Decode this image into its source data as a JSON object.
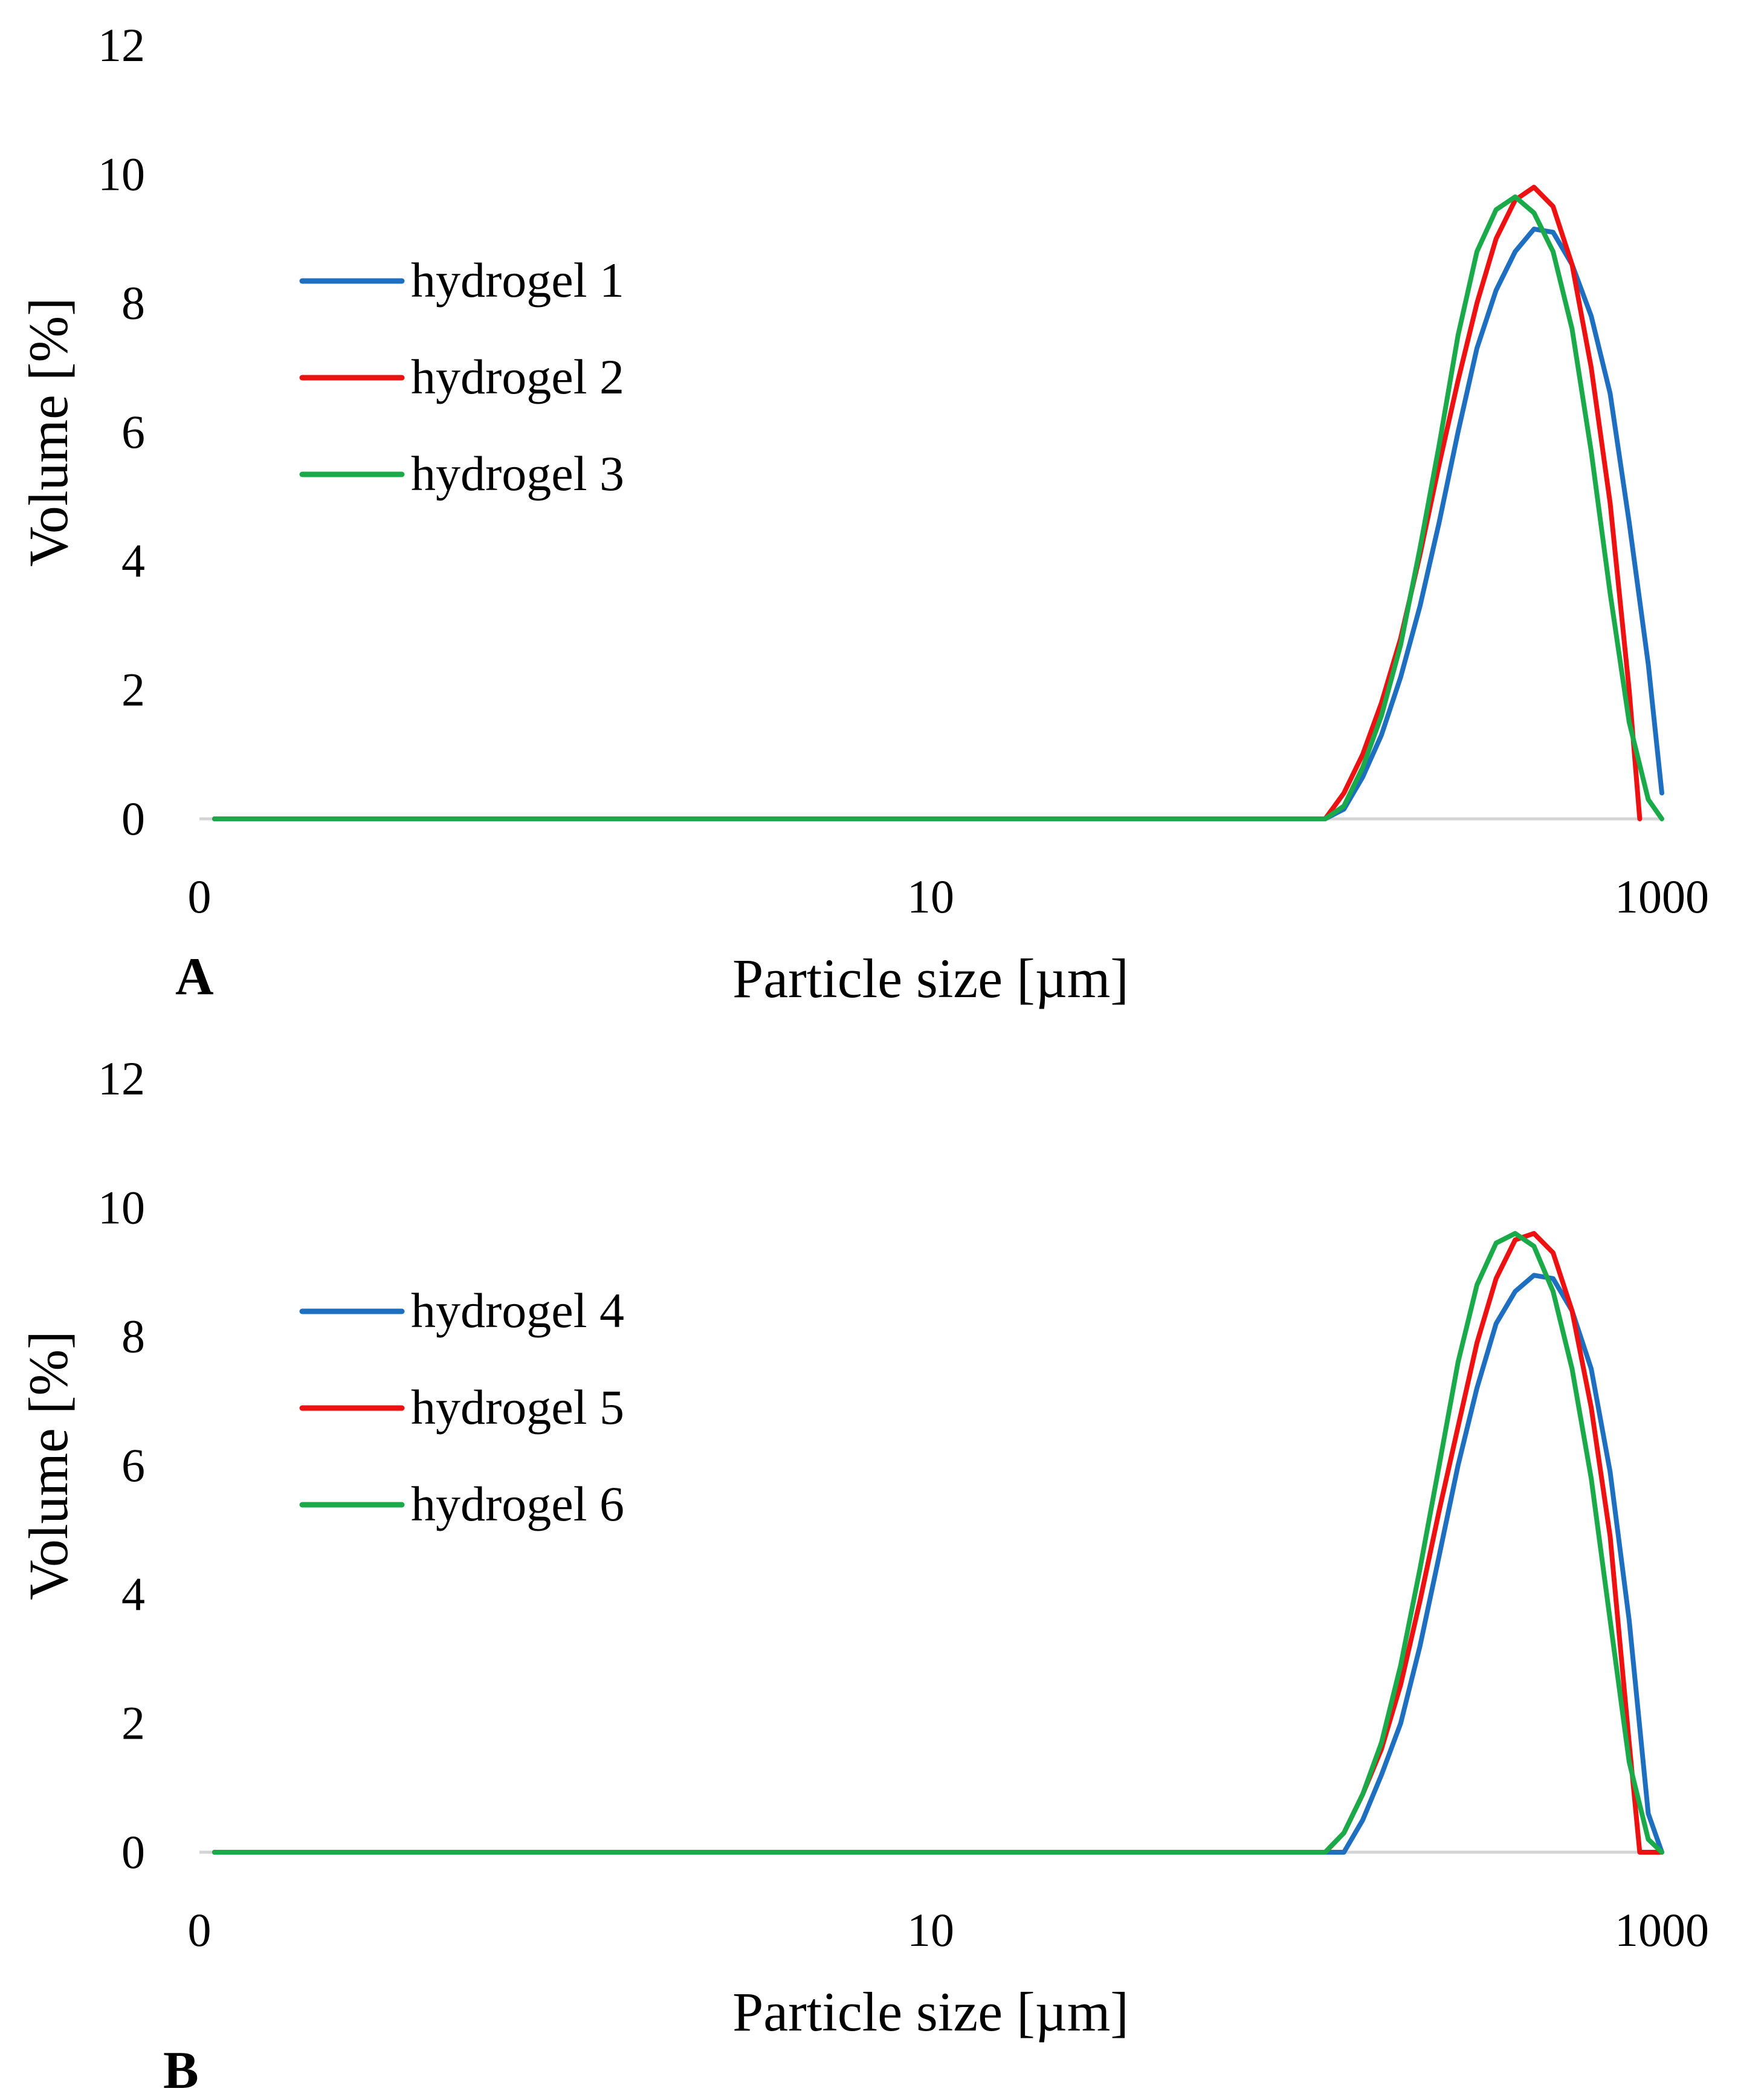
{
  "chart_data": [
    {
      "type": "line",
      "panel_label": "A",
      "xlabel": "Particle size [µm]",
      "ylabel": "Volume [%]",
      "x_scale": "log",
      "xlim": [
        0.1,
        1000
      ],
      "x_ticks": [
        {
          "value": 0.1,
          "label": "0"
        },
        {
          "value": 10,
          "label": "10"
        },
        {
          "value": 1000,
          "label": "1000"
        }
      ],
      "ylim": [
        0,
        12
      ],
      "y_ticks": [
        0,
        2,
        4,
        6,
        8,
        10,
        12
      ],
      "grid": "baseline only",
      "legend_position": "upper-left",
      "series": [
        {
          "name": "hydrogel 1",
          "color": "#1f6fc0",
          "x": [
            0.11,
            120,
            135,
            152,
            171,
            193,
            218,
            246,
            277,
            312,
            352,
            397,
            447,
            504,
            568,
            641,
            722,
            814,
            918,
            1000
          ],
          "y": [
            0,
            0,
            0.15,
            0.65,
            1.3,
            2.2,
            3.3,
            4.6,
            6.0,
            7.3,
            8.2,
            8.8,
            9.15,
            9.1,
            8.6,
            7.8,
            6.6,
            4.6,
            2.4,
            0.4
          ]
        },
        {
          "name": "hydrogel 2",
          "color": "#ee1111",
          "x": [
            0.11,
            120,
            135,
            152,
            171,
            193,
            218,
            246,
            277,
            312,
            352,
            397,
            447,
            504,
            568,
            641,
            722,
            814,
            870
          ],
          "y": [
            0,
            0,
            0.4,
            1.0,
            1.8,
            2.8,
            4.1,
            5.5,
            6.8,
            8.0,
            9.0,
            9.6,
            9.8,
            9.5,
            8.6,
            7.0,
            4.9,
            2.0,
            0
          ]
        },
        {
          "name": "hydrogel 3",
          "color": "#1aaa4a",
          "x": [
            0.11,
            120,
            135,
            152,
            171,
            193,
            218,
            246,
            277,
            312,
            352,
            397,
            447,
            504,
            568,
            641,
            722,
            814,
            918,
            1000
          ],
          "y": [
            0,
            0,
            0.2,
            0.8,
            1.6,
            2.7,
            4.2,
            5.8,
            7.5,
            8.8,
            9.45,
            9.65,
            9.4,
            8.8,
            7.6,
            5.7,
            3.5,
            1.5,
            0.3,
            0
          ]
        }
      ]
    },
    {
      "type": "line",
      "panel_label": "B",
      "xlabel": "Particle size [µm]",
      "ylabel": "Volume [%]",
      "x_scale": "log",
      "xlim": [
        0.1,
        1000
      ],
      "x_ticks": [
        {
          "value": 0.1,
          "label": "0"
        },
        {
          "value": 10,
          "label": "10"
        },
        {
          "value": 1000,
          "label": "1000"
        }
      ],
      "ylim": [
        0,
        12
      ],
      "y_ticks": [
        0,
        2,
        4,
        6,
        8,
        10,
        12
      ],
      "grid": "baseline only",
      "legend_position": "upper-left",
      "series": [
        {
          "name": "hydrogel 4",
          "color": "#1f6fc0",
          "x": [
            0.11,
            135,
            152,
            171,
            193,
            218,
            246,
            277,
            312,
            352,
            397,
            447,
            504,
            568,
            641,
            722,
            814,
            918,
            1000
          ],
          "y": [
            0,
            0,
            0.5,
            1.2,
            2.0,
            3.2,
            4.6,
            6.0,
            7.2,
            8.2,
            8.7,
            8.95,
            8.9,
            8.4,
            7.5,
            5.9,
            3.6,
            0.6,
            0
          ]
        },
        {
          "name": "hydrogel 5",
          "color": "#ee1111",
          "x": [
            0.11,
            120,
            135,
            152,
            171,
            193,
            218,
            246,
            277,
            312,
            352,
            397,
            447,
            504,
            568,
            641,
            722,
            814,
            870,
            1000
          ],
          "y": [
            0,
            0,
            0.3,
            0.9,
            1.6,
            2.6,
            3.9,
            5.3,
            6.6,
            7.9,
            8.9,
            9.5,
            9.6,
            9.3,
            8.4,
            6.9,
            4.9,
            1.7,
            0,
            0
          ]
        },
        {
          "name": "hydrogel 6",
          "color": "#1aaa4a",
          "x": [
            0.11,
            120,
            135,
            152,
            171,
            193,
            218,
            246,
            277,
            312,
            352,
            397,
            447,
            504,
            568,
            641,
            722,
            814,
            918,
            1000
          ],
          "y": [
            0,
            0,
            0.3,
            0.9,
            1.7,
            2.9,
            4.4,
            6.0,
            7.6,
            8.8,
            9.45,
            9.6,
            9.4,
            8.7,
            7.5,
            5.8,
            3.6,
            1.4,
            0.2,
            0
          ]
        }
      ]
    }
  ]
}
